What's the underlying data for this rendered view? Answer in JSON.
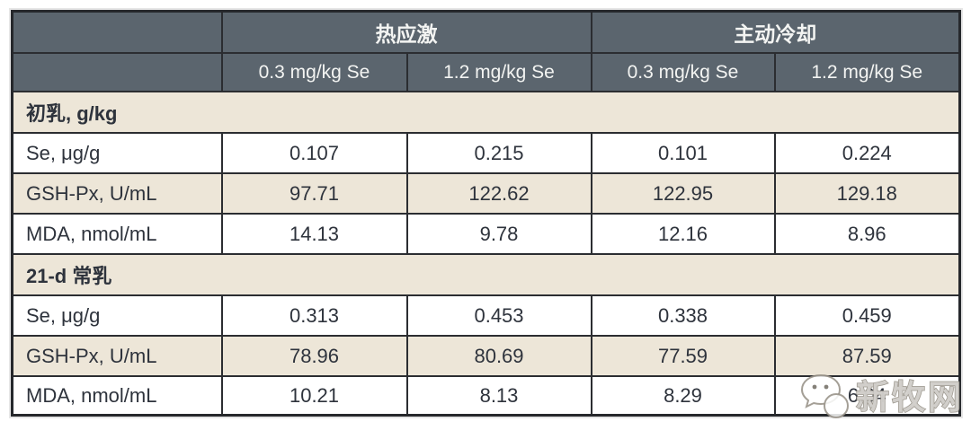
{
  "colors": {
    "header_bg": "#5b656e",
    "header_text": "#f3f4f2",
    "stripe_beige": "#ede6d8",
    "row_white": "#ffffff",
    "border": "#2b2d31",
    "body_text": "#2e333c"
  },
  "chart_data": {
    "type": "table",
    "group_headers": [
      {
        "label": "热应激"
      },
      {
        "label": "主动冷却"
      }
    ],
    "sub_headers": [
      "0.3 mg/kg Se",
      "1.2 mg/kg Se",
      "0.3 mg/kg Se",
      "1.2 mg/kg Se"
    ],
    "sections": [
      {
        "title": "初乳, g/kg",
        "rows": [
          {
            "label": "Se, μg/g",
            "values": [
              "0.107",
              "0.215",
              "0.101",
              "0.224"
            ]
          },
          {
            "label": "GSH-Px, U/mL",
            "values": [
              "97.71",
              "122.62",
              "122.95",
              "129.18"
            ]
          },
          {
            "label": "MDA, nmol/mL",
            "values": [
              "14.13",
              "9.78",
              "12.16",
              "8.96"
            ]
          }
        ]
      },
      {
        "title": "21-d 常乳",
        "rows": [
          {
            "label": "Se, μg/g",
            "values": [
              "0.313",
              "0.453",
              "0.338",
              "0.459"
            ]
          },
          {
            "label": "GSH-Px, U/mL",
            "values": [
              "78.96",
              "80.69",
              "77.59",
              "87.59"
            ]
          },
          {
            "label": "MDA, nmol/mL",
            "values": [
              "10.21",
              "8.13",
              "8.29",
              "6.04"
            ]
          }
        ]
      }
    ]
  },
  "watermark": {
    "text": "新牧网",
    "icon": "wechat-icon"
  }
}
